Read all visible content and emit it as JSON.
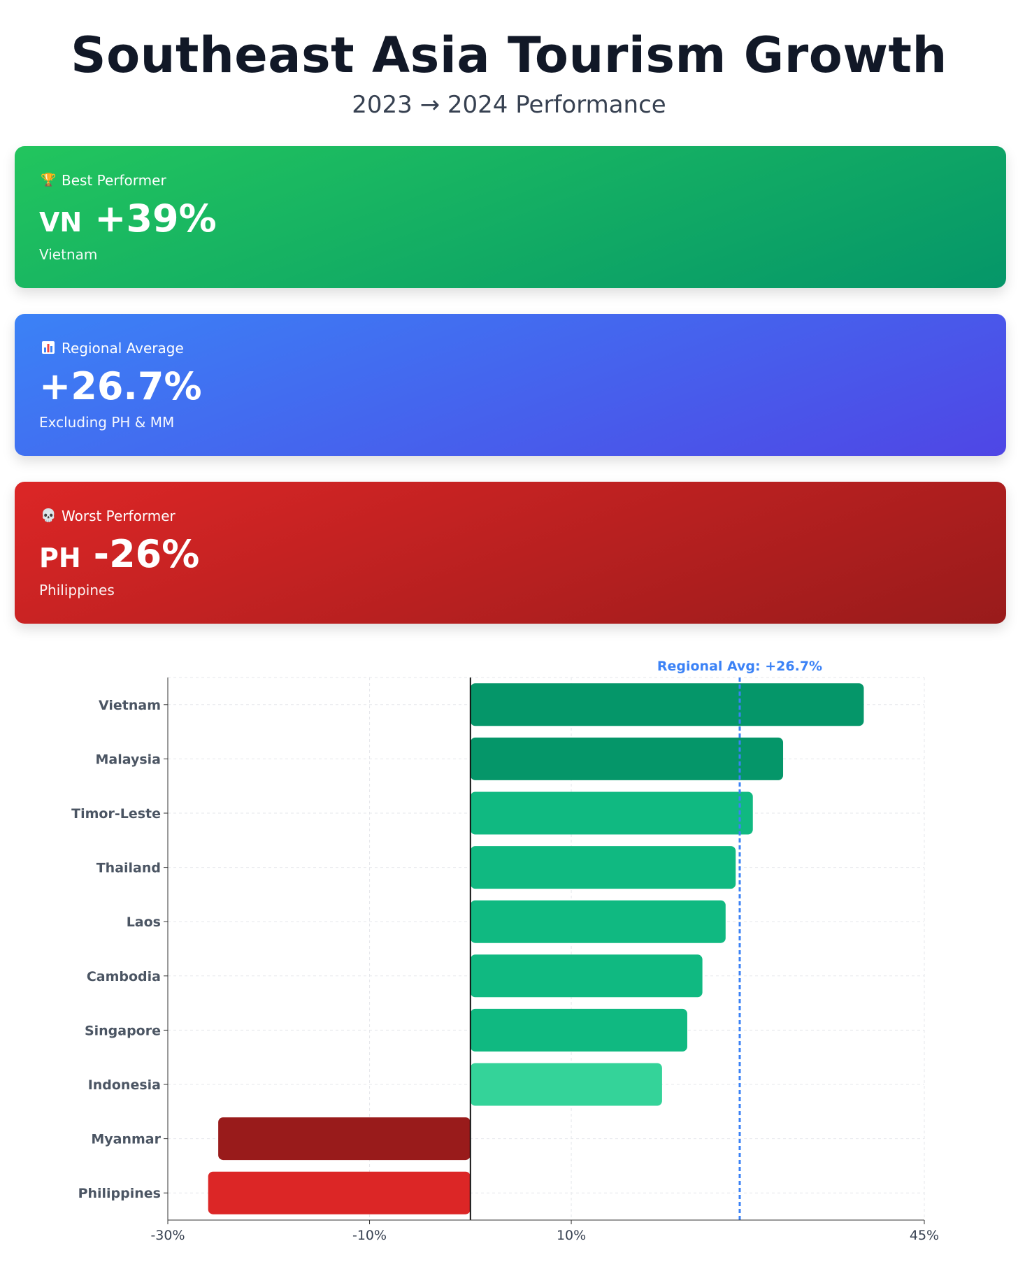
{
  "header": {
    "title": "Southeast Asia Tourism Growth",
    "subtitle": "2023 → 2024 Performance"
  },
  "cards": {
    "best": {
      "icon": "trophy-icon",
      "label": "Best Performer",
      "code": "VN",
      "value": "+39%",
      "sub": "Vietnam",
      "color": "#16a34a"
    },
    "average": {
      "icon": "bar-chart-icon",
      "label": "Regional Average",
      "value": "+26.7%",
      "sub": "Excluding PH & MM",
      "color": "#3b82f6"
    },
    "worst": {
      "icon": "skull-icon",
      "label": "Worst Performer",
      "code": "PH",
      "value": "-26%",
      "sub": "Philippines",
      "color": "#dc2626"
    }
  },
  "chart_data": {
    "type": "bar",
    "orientation": "horizontal",
    "categories": [
      "Vietnam",
      "Malaysia",
      "Timor-Leste",
      "Thailand",
      "Laos",
      "Cambodia",
      "Singapore",
      "Indonesia",
      "Myanmar",
      "Philippines"
    ],
    "values": [
      39,
      31,
      28,
      26.3,
      25.3,
      23,
      21.5,
      19,
      -25,
      -26
    ],
    "bar_colors": [
      "#059669",
      "#059669",
      "#10b981",
      "#10b981",
      "#10b981",
      "#10b981",
      "#10b981",
      "#34d399",
      "#991b1b",
      "#dc2626"
    ],
    "xlim": [
      -30,
      45
    ],
    "x_ticks": [
      -30,
      -10,
      10,
      45
    ],
    "x_tick_labels": [
      "-30%",
      "-10%",
      "10%",
      "45%"
    ],
    "reference_line": {
      "value": 26.7,
      "label": "Regional Avg: +26.7%",
      "color": "#3b82f6"
    },
    "grid": true
  }
}
